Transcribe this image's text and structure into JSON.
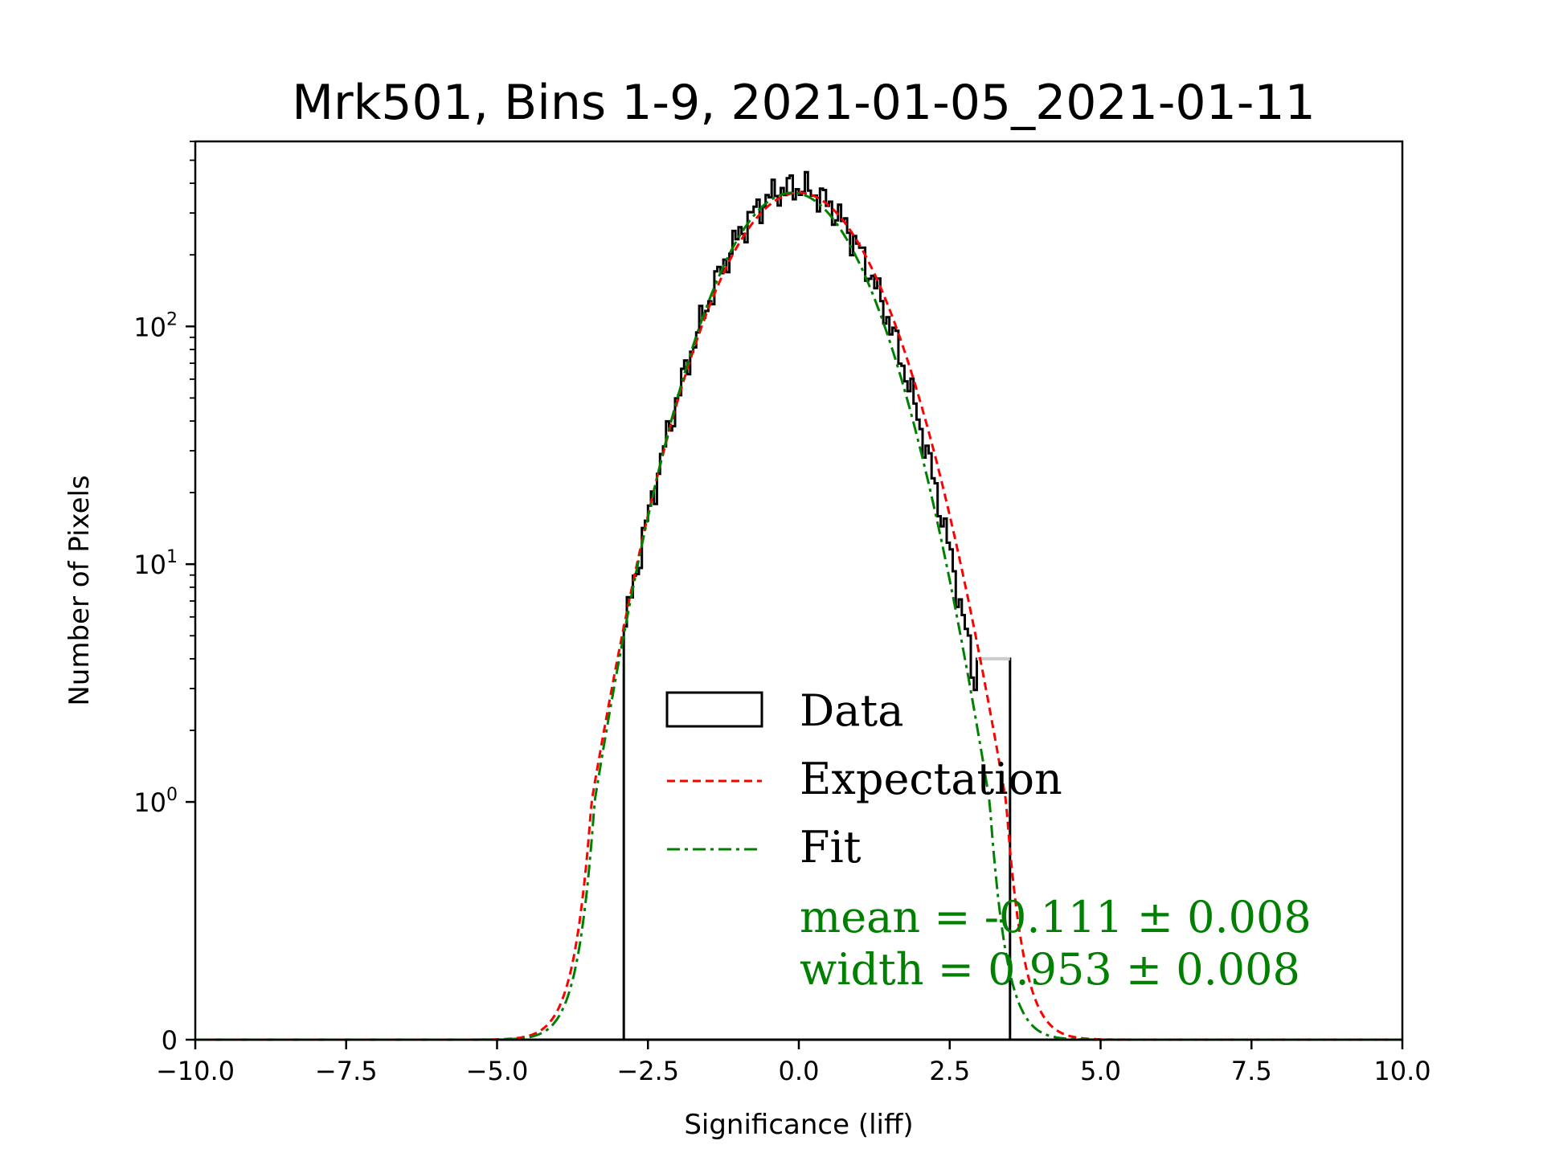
{
  "chart_data": {
    "type": "histogram",
    "title": "Mrk501, Bins 1-9, 2021-01-05_2021-01-11",
    "xlabel": "Significance (liff)",
    "ylabel": "Number of Pixels",
    "xlim": [
      -10,
      10
    ],
    "yscale": "symlog",
    "ylim": [
      0,
      600
    ],
    "x_ticks": [
      -10,
      -7.5,
      -5,
      -2.5,
      0,
      2.5,
      5,
      7.5,
      10
    ],
    "x_tick_labels": [
      "−10.0",
      "−7.5",
      "−5.0",
      "−2.5",
      "0.0",
      "2.5",
      "5.0",
      "7.5",
      "10.0"
    ],
    "y_ticks": [
      {
        "value": 0,
        "base": "0",
        "exp": ""
      },
      {
        "value": 1,
        "base": "10",
        "exp": "0"
      },
      {
        "value": 10,
        "base": "10",
        "exp": "1"
      },
      {
        "value": 100,
        "base": "10",
        "exp": "2"
      }
    ],
    "histogram": {
      "name": "Data",
      "bin_range": [
        -2.9,
        3.5
      ],
      "peak_counts": 385,
      "mean": -0.06,
      "sigma": 0.965,
      "last_bins_grey": {
        "from": 2.95,
        "to": 3.5,
        "counts": 4
      }
    },
    "curves": [
      {
        "name": "Expectation",
        "kind": "gaussian",
        "amplitude": 365,
        "mean": 0.0,
        "sigma": 1.0,
        "color": "#ff0000",
        "style": "dashed"
      },
      {
        "name": "Fit",
        "kind": "gaussian",
        "amplitude": 365,
        "mean": -0.111,
        "sigma": 0.953,
        "color": "#008000",
        "style": "dashdot"
      }
    ],
    "legend": {
      "position": "lower-right",
      "entries": [
        {
          "label": "Data",
          "marker": "box"
        },
        {
          "label": "Expectation",
          "marker": "dashed-red"
        },
        {
          "label": "Fit",
          "marker": "dashdot-green"
        }
      ]
    },
    "annotations": [
      "mean = -0.111 ± 0.008",
      "width = 0.953 ± 0.008"
    ]
  }
}
